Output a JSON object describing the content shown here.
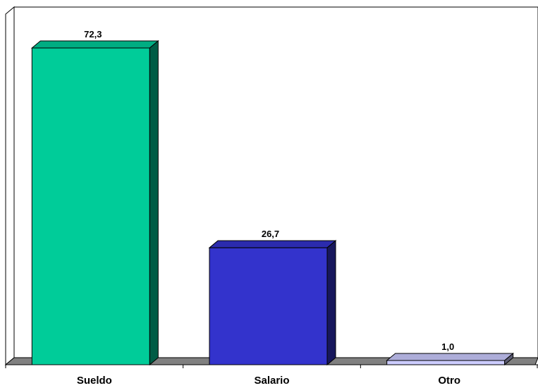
{
  "chart_data": {
    "type": "bar",
    "categories": [
      "Sueldo",
      "Salario",
      "Otro"
    ],
    "values": [
      72.3,
      26.7,
      1.0
    ],
    "value_labels": [
      "72,3",
      "26,7",
      "1,0"
    ],
    "colors": [
      "#00cc99",
      "#3333cc",
      "#ccccff"
    ],
    "ylim": [
      0,
      80
    ],
    "grid": false,
    "legend": false,
    "style": "3d-bar"
  }
}
